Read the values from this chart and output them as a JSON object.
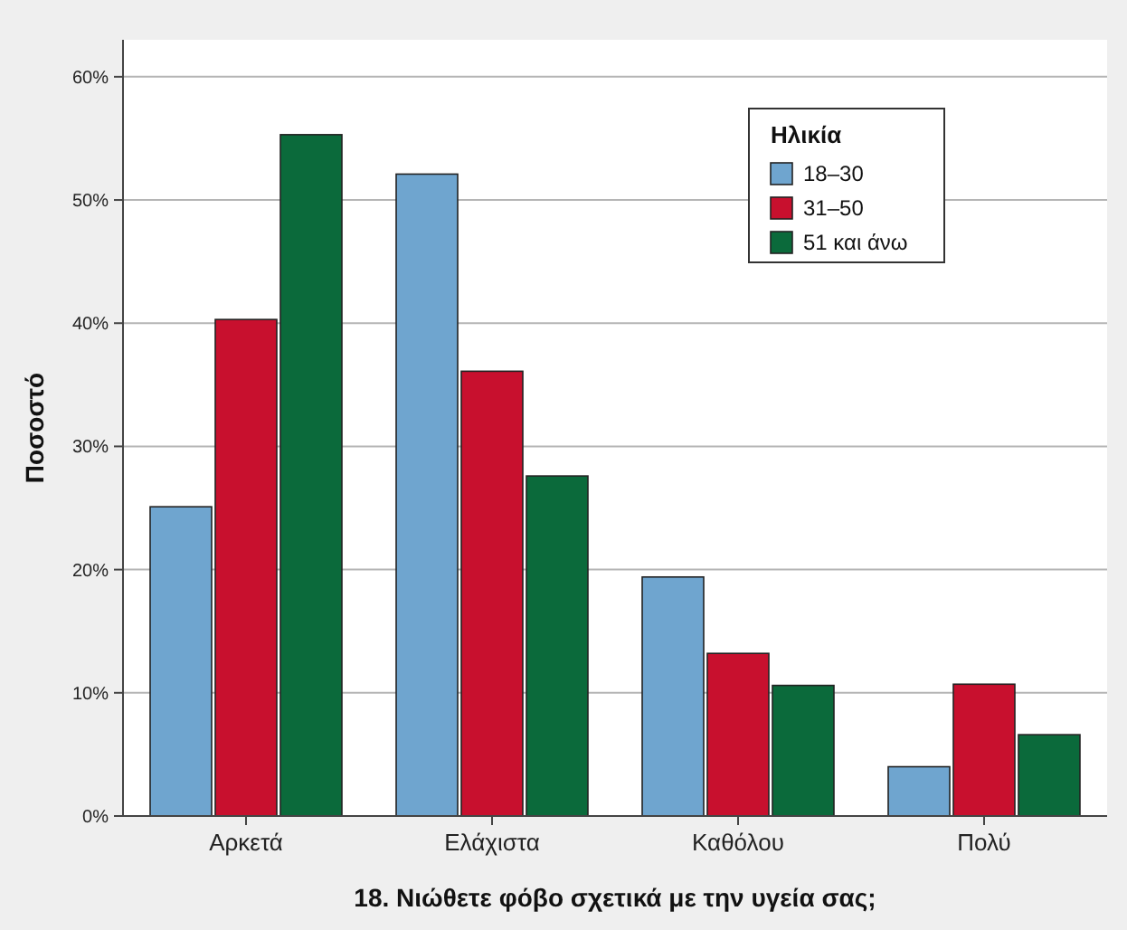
{
  "chart_data": {
    "type": "bar",
    "xlabel": "18. Νιώθετε φόβο σχετικά με την υγεία σας;",
    "ylabel": "Ποσοστό",
    "legend_title": "Ηλικία",
    "categories": [
      "Αρκετά",
      "Ελάχιστα",
      "Καθόλου",
      "Πολύ"
    ],
    "series": [
      {
        "name": "18–30",
        "color": "#6fa5cf",
        "values": [
          25.1,
          52.1,
          19.4,
          4.0
        ]
      },
      {
        "name": "31–50",
        "color": "#c8102e",
        "values": [
          40.3,
          36.1,
          13.2,
          10.7
        ]
      },
      {
        "name": "51 και άνω",
        "color": "#0b6a3b",
        "values": [
          55.3,
          27.6,
          10.6,
          6.6
        ]
      }
    ],
    "ylim": [
      0,
      63
    ],
    "yticks": [
      {
        "value": 0,
        "label": "0%"
      },
      {
        "value": 10,
        "label": "10%"
      },
      {
        "value": 20,
        "label": "20%"
      },
      {
        "value": 30,
        "label": "30%"
      },
      {
        "value": 40,
        "label": "40%"
      },
      {
        "value": 50,
        "label": "50%"
      },
      {
        "value": 60,
        "label": "60%"
      }
    ],
    "grid": "y",
    "legend": "top right"
  }
}
